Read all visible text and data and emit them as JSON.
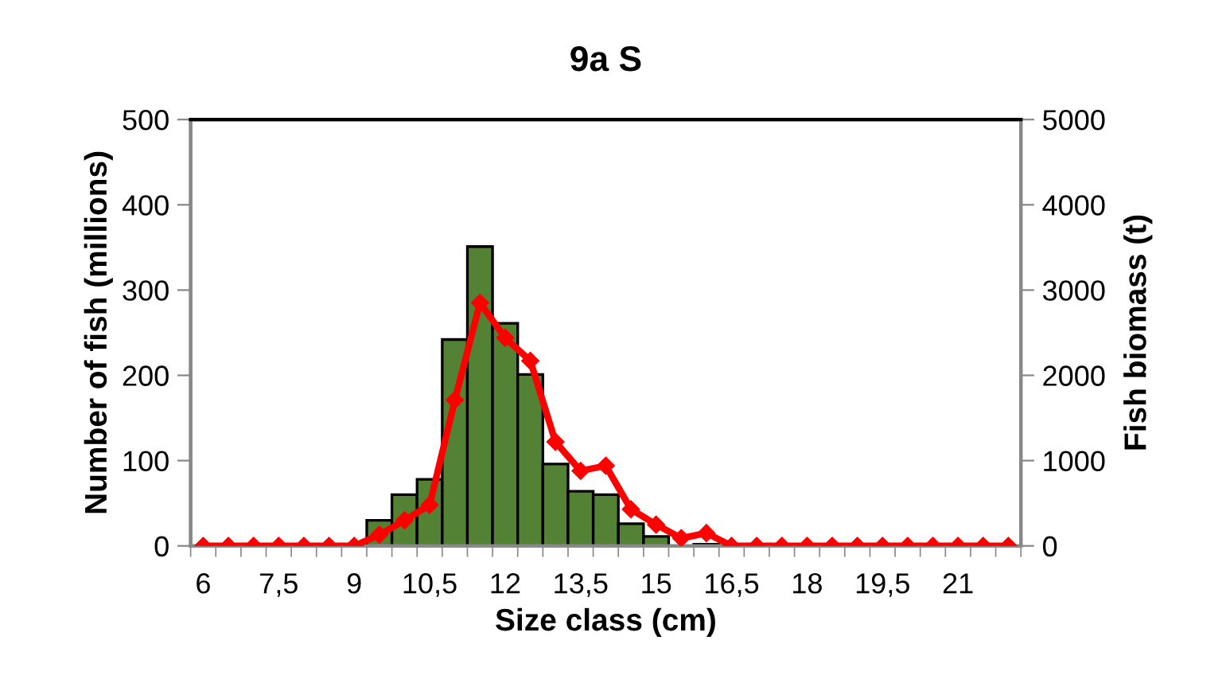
{
  "chart_data": {
    "type": "bar",
    "title": "9a S",
    "xlabel": "Size class (cm)",
    "ylabel": "Number of fish (millions)",
    "y2label": "Fish biomass (t)",
    "categories": [
      "6",
      null,
      null,
      "7,5",
      null,
      null,
      "9",
      null,
      null,
      "10,5",
      null,
      null,
      "12",
      null,
      null,
      "13,5",
      null,
      null,
      "15",
      null,
      null,
      "16,5",
      null,
      null,
      "18",
      null,
      null,
      "19,5",
      null,
      null,
      "21",
      null,
      null
    ],
    "series": [
      {
        "color": "#548235",
        "values": [
          0,
          0,
          0,
          0,
          0,
          0,
          0,
          30,
          60,
          78,
          242,
          351,
          261,
          201,
          96,
          64,
          60,
          26,
          11,
          null,
          2,
          0,
          0,
          0,
          0,
          0,
          0,
          0,
          0,
          0,
          0,
          0,
          0
        ]
      },
      {
        "type": "line",
        "axis": "y2",
        "color": "#ff0000",
        "marker": "diamond",
        "line_style": "solid",
        "values": [
          0,
          0,
          0,
          0,
          0,
          0,
          0,
          130,
          300,
          480,
          1710,
          2850,
          2440,
          2170,
          1220,
          880,
          940,
          430,
          250,
          90,
          150,
          0,
          0,
          0,
          0,
          0,
          0,
          0,
          0,
          0,
          0,
          0,
          0
        ]
      }
    ],
    "ylim": [
      0,
      500
    ],
    "yticks": [
      0,
      100,
      200,
      300,
      400,
      500
    ],
    "y2lim": [
      0,
      5000
    ],
    "y2ticks": [
      0,
      1000,
      2000,
      3000,
      4000,
      5000
    ],
    "grid": false,
    "legend": false
  }
}
